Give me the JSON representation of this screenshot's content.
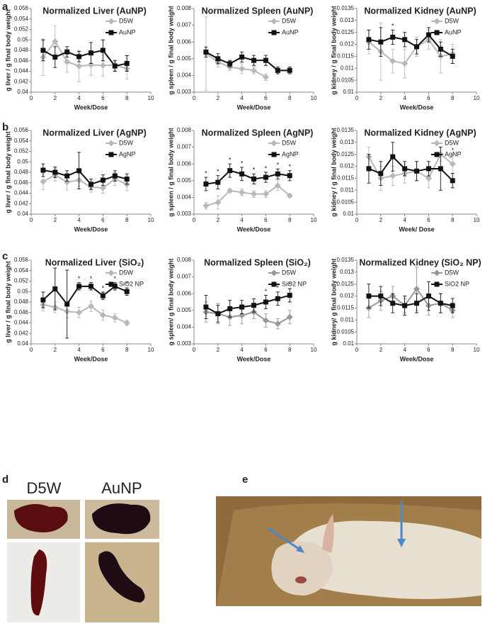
{
  "panel_labels": [
    "a",
    "b",
    "c",
    "d",
    "e"
  ],
  "photo_d": {
    "columns": [
      "D5W",
      "AuNP"
    ]
  },
  "chart_data": [
    {
      "type": "line",
      "title": "Normalized Liver (AuNP)",
      "xlabel": "Week/Dose",
      "ylabel": "g liver / g final body weight",
      "x": [
        1,
        2,
        3,
        4,
        5,
        6,
        7,
        8
      ],
      "xlim": [
        0,
        10
      ],
      "xticks": [
        0,
        2,
        4,
        6,
        8,
        10
      ],
      "ylim": [
        0.04,
        0.056
      ],
      "yticks": [
        0.04,
        0.042,
        0.044,
        0.046,
        0.048,
        0.05,
        0.052,
        0.054,
        0.056
      ],
      "series": [
        {
          "name": "D5W",
          "color": "#b3bcb3",
          "marker": "diamond",
          "values": [
            0.0467,
            0.0497,
            0.0458,
            0.045,
            0.0452,
            0.0451,
            0.0452,
            0.0445
          ],
          "errors": [
            0.0035,
            0.003,
            0.002,
            0.003,
            0.002,
            0.002,
            0.001,
            0.002
          ]
        },
        {
          "name": "AuNP",
          "color": "#111111",
          "marker": "square",
          "values": [
            0.048,
            0.0467,
            0.0477,
            0.0468,
            0.0475,
            0.048,
            0.045,
            0.0455
          ],
          "errors": [
            0.002,
            0.002,
            0.001,
            0.001,
            0.002,
            0.002,
            0.001,
            0.0015
          ]
        }
      ],
      "stars": [
        null,
        null,
        null,
        null,
        null,
        null,
        null,
        null
      ]
    },
    {
      "type": "line",
      "title": "Normalized Spleen (AuNP)",
      "xlabel": "Week/Dose",
      "ylabel": "g spleen / g final body weight",
      "x": [
        1,
        2,
        3,
        4,
        5,
        6,
        7,
        8
      ],
      "xlim": [
        0,
        10
      ],
      "xticks": [
        0,
        2,
        4,
        6,
        8,
        10
      ],
      "ylim": [
        0.003,
        0.008
      ],
      "yticks": [
        0.003,
        0.004,
        0.005,
        0.006,
        0.007,
        0.008
      ],
      "series": [
        {
          "name": "D5W",
          "color": "#b3bcb3",
          "marker": "diamond",
          "values": [
            0.0053,
            0.0048,
            0.0045,
            0.0044,
            0.0043,
            0.0039,
            null,
            null
          ],
          "errors": [
            0.0022,
            0.0003,
            0.0002,
            0.0003,
            0.0002,
            0.0002,
            null,
            null
          ]
        },
        {
          "name": "AuNP",
          "color": "#111111",
          "marker": "square",
          "values": [
            0.0054,
            0.005,
            0.0047,
            0.0051,
            0.0049,
            0.0049,
            0.0043,
            0.0043
          ],
          "errors": [
            0.0003,
            0.0003,
            0.0002,
            0.0003,
            0.0003,
            0.0003,
            0.0002,
            0.0002
          ]
        }
      ],
      "stars": [
        null,
        null,
        null,
        null,
        null,
        null,
        null,
        null
      ]
    },
    {
      "type": "line",
      "title": "Normalized Kidney (AuNP)",
      "xlabel": "Week/Dose",
      "ylabel": "g kidney / g final body weight",
      "x": [
        1,
        2,
        3,
        4,
        5,
        6,
        7,
        8
      ],
      "xlim": [
        0,
        10
      ],
      "xticks": [
        0,
        2,
        4,
        6,
        8,
        10
      ],
      "ylim": [
        0.01,
        0.0135
      ],
      "yticks": [
        0.01,
        0.0105,
        0.011,
        0.0115,
        0.012,
        0.0125,
        0.013,
        0.0135
      ],
      "series": [
        {
          "name": "D5W",
          "color": "#b3bcb3",
          "marker": "diamond",
          "values": [
            0.0121,
            0.0117,
            0.0113,
            0.0112,
            0.0119,
            0.0122,
            0.0115,
            0.0116
          ],
          "errors": [
            0.0005,
            0.0012,
            0.0005,
            0.0006,
            0.0004,
            0.0004,
            0.0007,
            0.0004
          ]
        },
        {
          "name": "AuNP",
          "color": "#111111",
          "marker": "square",
          "values": [
            0.0122,
            0.0121,
            0.0123,
            0.0122,
            0.0119,
            0.0124,
            0.0118,
            0.0115
          ],
          "errors": [
            0.0004,
            0.0006,
            0.0003,
            0.0003,
            0.0003,
            0.0003,
            0.0003,
            0.0003
          ]
        }
      ],
      "stars": [
        null,
        null,
        "*",
        null,
        null,
        null,
        null,
        null
      ]
    },
    {
      "type": "line",
      "title": "Normalized Liver (AgNP)",
      "xlabel": "Week/Dose",
      "ylabel": "g liver / g final body weight",
      "x": [
        1,
        2,
        3,
        4,
        5,
        6,
        7,
        8
      ],
      "xlim": [
        0,
        10
      ],
      "xticks": [
        0,
        2,
        4,
        6,
        8,
        10
      ],
      "ylim": [
        0.04,
        0.056
      ],
      "yticks": [
        0.04,
        0.042,
        0.044,
        0.046,
        0.048,
        0.05,
        0.052,
        0.054,
        0.056
      ],
      "series": [
        {
          "name": "D5W",
          "color": "#b3bcb3",
          "marker": "diamond",
          "values": [
            0.0462,
            0.0475,
            0.0461,
            0.0465,
            0.0452,
            0.045,
            0.0467,
            0.0457
          ],
          "errors": [
            0.0015,
            0.0012,
            0.0015,
            0.0012,
            0.001,
            0.001,
            0.0012,
            0.0012
          ]
        },
        {
          "name": "AgNP",
          "color": "#111111",
          "marker": "square",
          "values": [
            0.0484,
            0.048,
            0.0473,
            0.0483,
            0.0457,
            0.0465,
            0.0473,
            0.0467
          ],
          "errors": [
            0.0012,
            0.001,
            0.001,
            0.0035,
            0.001,
            0.001,
            0.001,
            0.001
          ]
        }
      ],
      "stars": [
        null,
        null,
        null,
        null,
        null,
        null,
        null,
        null
      ]
    },
    {
      "type": "line",
      "title": "Normalized Spleen (AgNP)",
      "xlabel": "Week/Dose",
      "ylabel": "g spleen / g final body weight",
      "x": [
        1,
        2,
        3,
        4,
        5,
        6,
        7,
        8
      ],
      "xlim": [
        0,
        10
      ],
      "xticks": [
        0,
        2,
        4,
        6,
        8,
        10
      ],
      "ylim": [
        0.003,
        0.008
      ],
      "yticks": [
        0.003,
        0.004,
        0.005,
        0.006,
        0.007,
        0.008
      ],
      "series": [
        {
          "name": "D5W",
          "color": "#b3bcb3",
          "marker": "diamond",
          "values": [
            0.0035,
            0.0037,
            0.0044,
            0.0043,
            0.0042,
            0.0042,
            0.0047,
            0.0041
          ],
          "errors": [
            0.0002,
            0.0004,
            0.0001,
            0.0002,
            0.0002,
            0.0002,
            0.0003,
            0.0001
          ]
        },
        {
          "name": "AgNP",
          "color": "#111111",
          "marker": "square",
          "values": [
            0.0048,
            0.0049,
            0.0056,
            0.0054,
            0.0051,
            0.0052,
            0.0054,
            0.0053
          ],
          "errors": [
            0.0004,
            0.0004,
            0.0004,
            0.0004,
            0.0003,
            0.0003,
            0.0003,
            0.0003
          ]
        }
      ],
      "stars": [
        "*",
        "*",
        "*",
        "*",
        "*",
        "*",
        "*",
        "*"
      ]
    },
    {
      "type": "line",
      "title": "Normalized Kidney (AgNP)",
      "xlabel": "Week/ Dose",
      "ylabel": "g kidney / g final body weight",
      "x": [
        1,
        2,
        3,
        4,
        5,
        6,
        7,
        8
      ],
      "xlim": [
        0,
        10
      ],
      "xticks": [
        0,
        2,
        4,
        6,
        8,
        10
      ],
      "ylim": [
        0.01,
        0.0135
      ],
      "yticks": [
        0.01,
        0.0105,
        0.011,
        0.0115,
        0.012,
        0.0125,
        0.013,
        0.0135
      ],
      "series": [
        {
          "name": "D5W",
          "color": "#b3bcb3",
          "marker": "diamond",
          "values": [
            0.0124,
            0.0115,
            0.0116,
            0.0117,
            0.0118,
            0.0115,
            0.0125,
            0.0121
          ],
          "errors": [
            0.0004,
            0.0005,
            0.0004,
            0.0004,
            0.0004,
            0.0004,
            0.0003,
            0.0004
          ]
        },
        {
          "name": "AgNP",
          "color": "#111111",
          "marker": "square",
          "values": [
            0.0119,
            0.0117,
            0.0124,
            0.0119,
            0.0118,
            0.0119,
            0.0119,
            0.0114
          ],
          "errors": [
            0.0006,
            0.0005,
            0.0006,
            0.0003,
            0.0004,
            0.0003,
            0.0009,
            0.0003
          ]
        }
      ],
      "stars": [
        null,
        null,
        null,
        null,
        null,
        null,
        null,
        "*"
      ]
    },
    {
      "type": "line",
      "title": "Normalized Liver (SiO₂)",
      "xlabel": "Week/Dose",
      "ylabel": "g liver / g final body weight",
      "x": [
        1,
        2,
        3,
        4,
        5,
        6,
        7,
        8
      ],
      "xlim": [
        0,
        10
      ],
      "xticks": [
        0,
        2,
        4,
        6,
        8,
        10
      ],
      "ylim": [
        0.04,
        0.056
      ],
      "yticks": [
        0.04,
        0.042,
        0.044,
        0.046,
        0.048,
        0.05,
        0.052,
        0.054,
        0.056
      ],
      "series": [
        {
          "name": "D5W",
          "color": "#b3bcb3",
          "marker": "diamond",
          "values": [
            0.0475,
            0.047,
            0.0462,
            0.046,
            0.0472,
            0.0455,
            0.045,
            0.044
          ],
          "errors": [
            0.0012,
            0.001,
            0.0012,
            0.001,
            0.001,
            0.001,
            0.0008,
            0.0005
          ]
        },
        {
          "name": "SiO2 NP",
          "color": "#111111",
          "marker": "square",
          "values": [
            0.0484,
            0.0505,
            0.0476,
            0.051,
            0.051,
            0.0492,
            0.051,
            0.05
          ],
          "errors": [
            0.0015,
            0.004,
            0.0065,
            0.0007,
            0.0007,
            0.0007,
            0.0007,
            0.0007
          ]
        }
      ],
      "stars": [
        null,
        null,
        null,
        "*",
        "*",
        "*",
        "*",
        "*"
      ]
    },
    {
      "type": "line",
      "title": "Normalized Spleen (SiO₂)",
      "xlabel": "Week/Dose",
      "ylabel": "g spleen/ g final body weight",
      "x": [
        1,
        2,
        3,
        4,
        5,
        6,
        7,
        8
      ],
      "xlim": [
        0,
        10
      ],
      "xticks": [
        0,
        2,
        4,
        6,
        8,
        10
      ],
      "ylim": [
        0.003,
        0.008
      ],
      "yticks": [
        0.003,
        0.004,
        0.005,
        0.006,
        0.007,
        0.008
      ],
      "series": [
        {
          "name": "D5W",
          "color": "#999999",
          "marker": "diamond",
          "values": [
            0.0049,
            0.0048,
            0.0046,
            0.0047,
            0.0049,
            0.0044,
            0.0042,
            0.0046
          ],
          "errors": [
            0.0006,
            0.0006,
            0.0005,
            0.0005,
            0.0004,
            0.0004,
            0.0003,
            0.0004
          ]
        },
        {
          "name": "SiO2 NP",
          "color": "#111111",
          "marker": "square",
          "values": [
            0.0052,
            0.0048,
            0.0051,
            0.0052,
            0.0053,
            0.0055,
            0.0057,
            0.0059
          ],
          "errors": [
            0.0007,
            0.0005,
            0.0005,
            0.0004,
            0.0004,
            0.0004,
            0.0004,
            0.0004
          ]
        }
      ],
      "stars": [
        null,
        null,
        null,
        null,
        null,
        "*",
        "*",
        "*"
      ]
    },
    {
      "type": "line",
      "title": "Normalized Kidney (SiO₂ NP)",
      "xlabel": "Week/Dose",
      "ylabel": "g kidney/ g final body weight",
      "x": [
        1,
        2,
        3,
        4,
        5,
        6,
        7,
        8
      ],
      "xlim": [
        0,
        10
      ],
      "xticks": [
        0,
        2,
        4,
        6,
        8,
        10
      ],
      "ylim": [
        0.01,
        0.0135
      ],
      "yticks": [
        0.01,
        0.0105,
        0.011,
        0.0115,
        0.012,
        0.0125,
        0.013,
        0.0135
      ],
      "series": [
        {
          "name": "D5W",
          "color": "#999999",
          "marker": "diamond",
          "values": [
            0.0115,
            0.0118,
            0.012,
            0.0116,
            0.0123,
            0.0116,
            0.0117,
            0.0114
          ],
          "errors": [
            0.0004,
            0.0004,
            0.0004,
            0.0003,
            0.0009,
            0.0004,
            0.0004,
            0.0003
          ]
        },
        {
          "name": "SiO2 NP",
          "color": "#111111",
          "marker": "square",
          "values": [
            0.012,
            0.012,
            0.0117,
            0.0116,
            0.0117,
            0.012,
            0.0117,
            0.0116
          ],
          "errors": [
            0.0005,
            0.0004,
            0.0004,
            0.0004,
            0.0004,
            0.0006,
            0.0004,
            0.0003
          ]
        }
      ],
      "stars": [
        null,
        null,
        null,
        null,
        null,
        null,
        null,
        null
      ]
    }
  ]
}
